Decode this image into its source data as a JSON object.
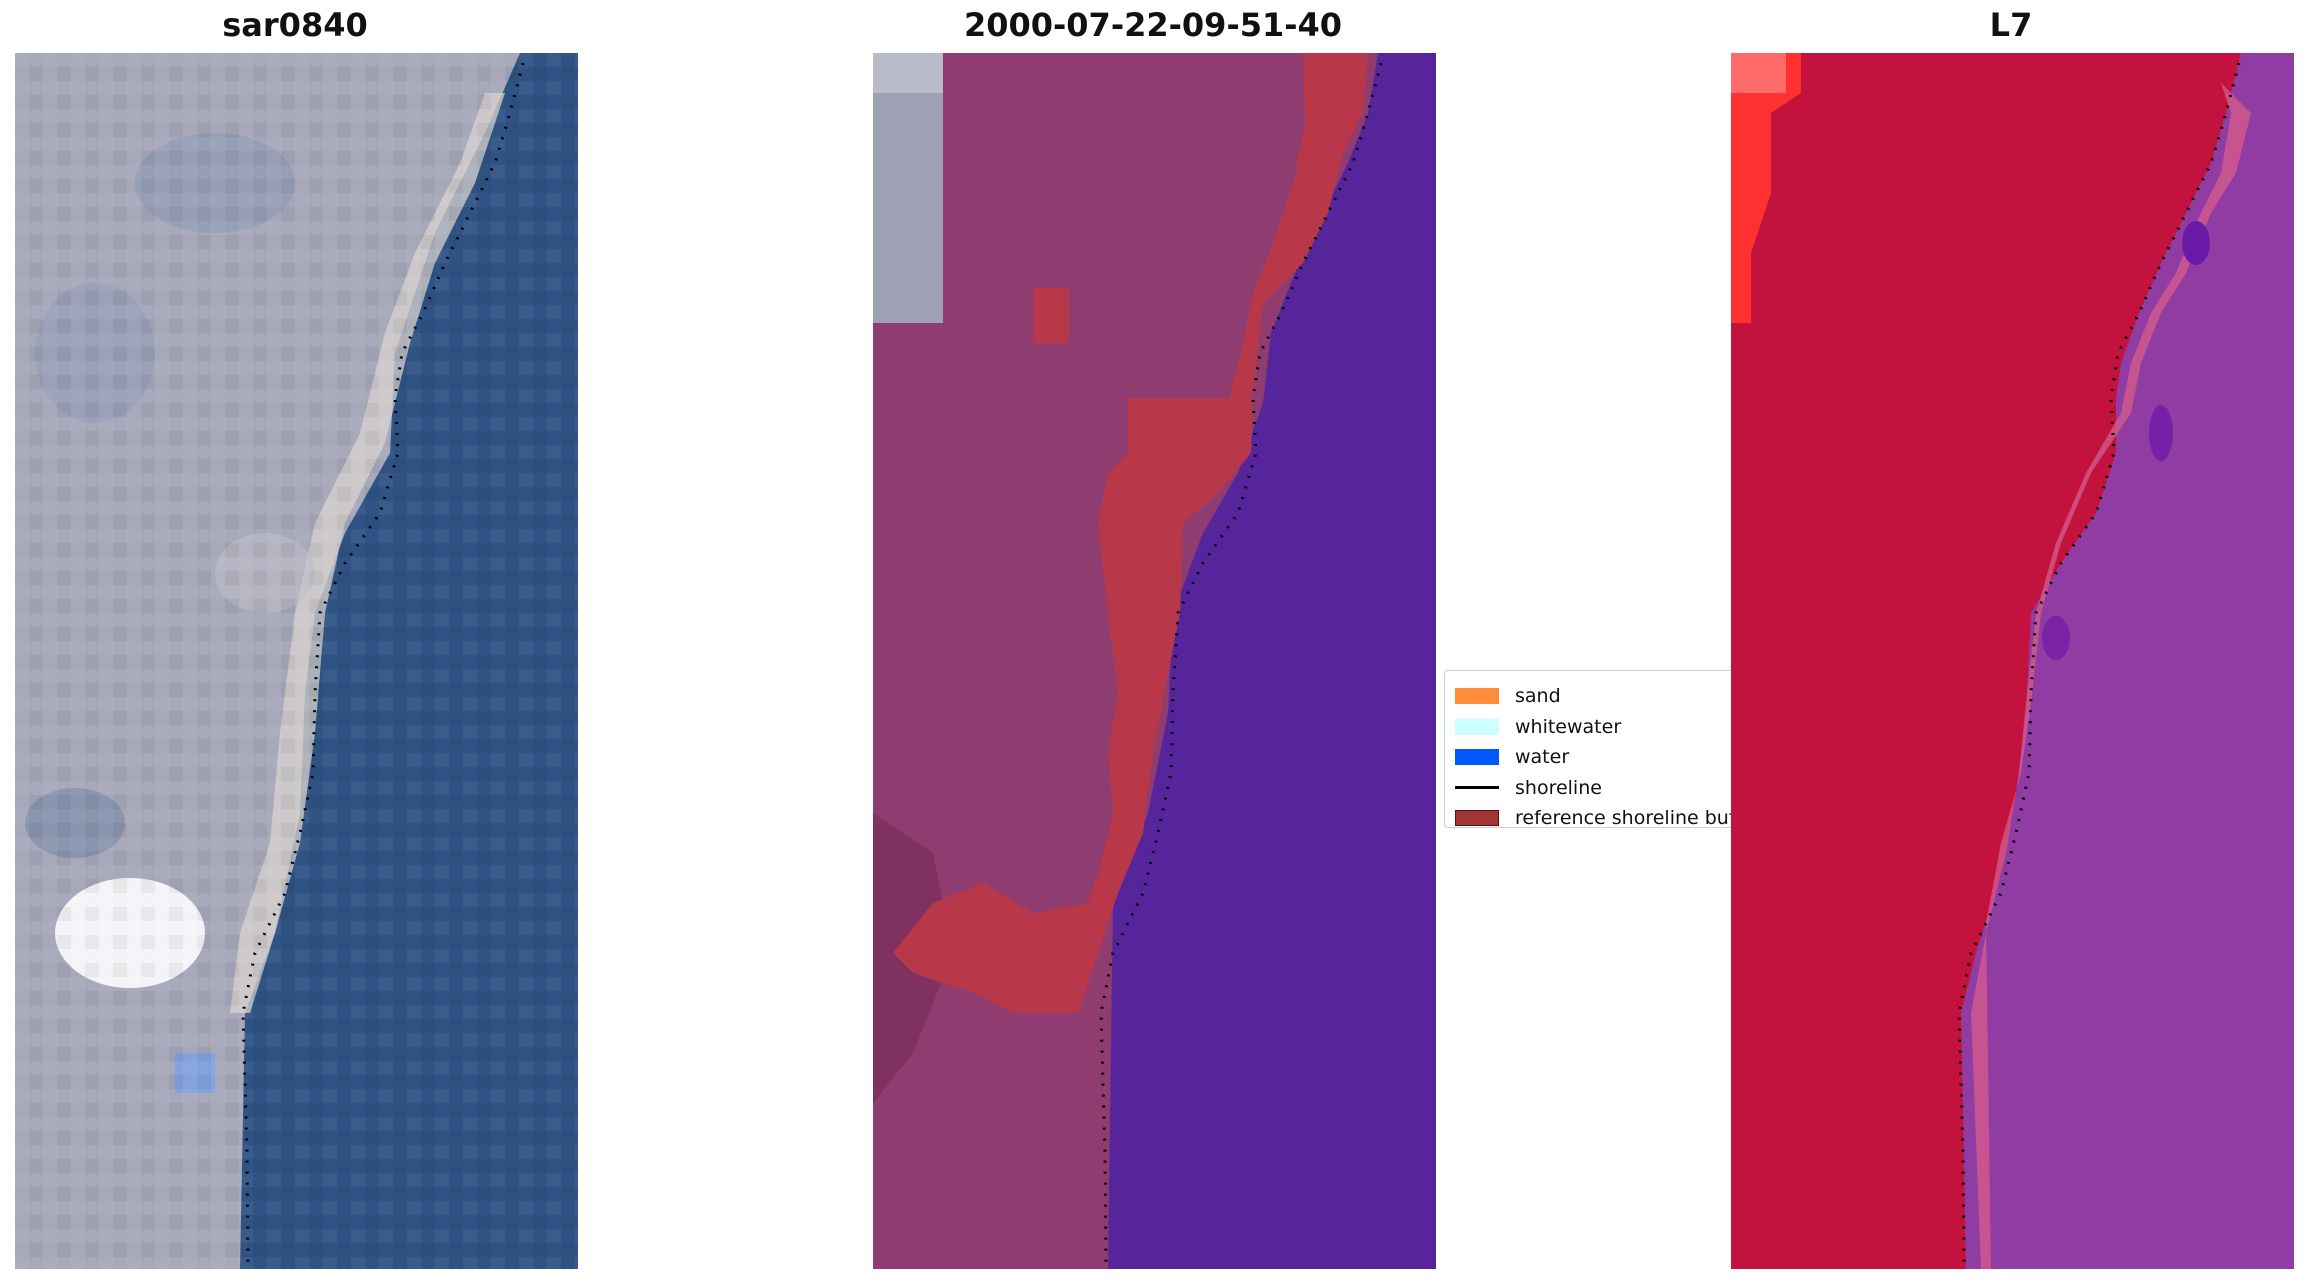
{
  "panels": [
    {
      "title": "sar0840"
    },
    {
      "title": "2000-07-22-09-51-40"
    },
    {
      "title": "L7"
    }
  ],
  "legend": {
    "items": [
      {
        "label": "sand",
        "color": "#ff8c3a",
        "kind": "patch"
      },
      {
        "label": "whitewater",
        "color": "#ccffff",
        "kind": "patch"
      },
      {
        "label": "water",
        "color": "#0059ff",
        "kind": "patch"
      },
      {
        "label": "shoreline",
        "color": "#000000",
        "kind": "line"
      },
      {
        "label": "reference shoreline buffer",
        "color": "#a03535",
        "kind": "patch-outlined"
      }
    ]
  },
  "colors": {
    "rgb_land": "#a6a8b8",
    "rgb_sea": "#2e5585",
    "classified_land": "#8d3a6e",
    "classified_sea": "#55269b",
    "classified_buffer": "#b8384a",
    "l7_land": "#c2123d",
    "l7_sea": "#903ba0"
  }
}
